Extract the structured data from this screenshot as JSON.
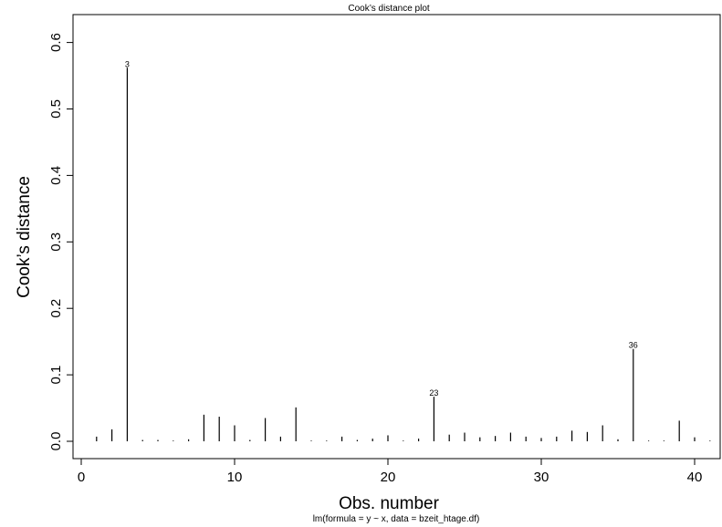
{
  "chart_data": {
    "type": "bar",
    "title": "Cook’s distance plot",
    "xlabel": "Obs. number",
    "ylabel": "Cook’s distance",
    "subtitle": "lm(formula = y ~ x, data = bzeit_htage.df)",
    "xlim": [
      0,
      41
    ],
    "ylim": [
      0,
      0.6
    ],
    "x_ticks": [
      0,
      10,
      20,
      30,
      40
    ],
    "y_ticks": [
      0.0,
      0.1,
      0.2,
      0.3,
      0.4,
      0.5,
      0.6
    ],
    "x_tick_labels": [
      "0",
      "10",
      "20",
      "30",
      "40"
    ],
    "y_tick_labels": [
      "0.0",
      "0.1",
      "0.2",
      "0.3",
      "0.4",
      "0.5",
      "0.6"
    ],
    "x": [
      1,
      2,
      3,
      4,
      5,
      6,
      7,
      8,
      9,
      10,
      11,
      12,
      13,
      14,
      15,
      16,
      17,
      18,
      19,
      20,
      21,
      22,
      23,
      24,
      25,
      26,
      27,
      28,
      29,
      30,
      31,
      32,
      33,
      34,
      35,
      36,
      37,
      38,
      39,
      40,
      41
    ],
    "values": [
      0.007,
      0.018,
      0.562,
      0.002,
      0.002,
      0.001,
      0.003,
      0.04,
      0.037,
      0.024,
      0.002,
      0.035,
      0.007,
      0.051,
      0.001,
      0.001,
      0.007,
      0.002,
      0.004,
      0.009,
      0.001,
      0.004,
      0.067,
      0.01,
      0.013,
      0.006,
      0.008,
      0.013,
      0.007,
      0.005,
      0.007,
      0.016,
      0.014,
      0.024,
      0.003,
      0.139,
      0.001,
      0.001,
      0.031,
      0.006,
      0.001
    ],
    "labeled_points": [
      {
        "x": 3,
        "label": "3"
      },
      {
        "x": 23,
        "label": "23"
      },
      {
        "x": 36,
        "label": "36"
      }
    ],
    "grid": false,
    "legend": "none",
    "color": "#000000"
  }
}
